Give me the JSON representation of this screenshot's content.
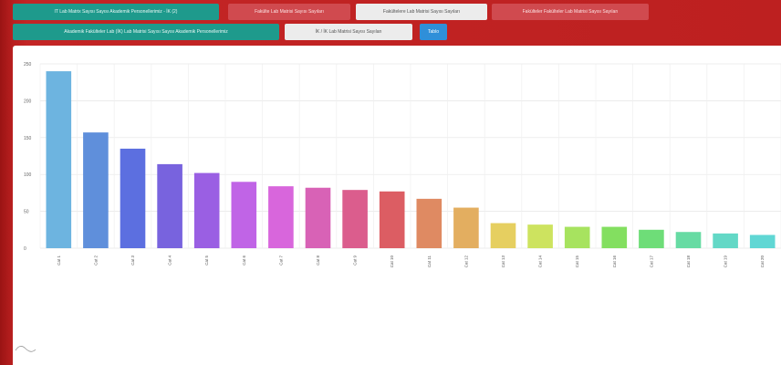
{
  "tabs": [
    {
      "label": "IT Lab Matrix Sayısı Sayısı Akademik Personellerimiz - İK (2)",
      "style": "teal",
      "active": true
    },
    {
      "label": "Fakülte Lab Matrisi Sayısı Sayıları",
      "style": "red",
      "active": false
    },
    {
      "label": "Fakültelere Lab Matrisi Sayısı Sayıları",
      "style": "light",
      "active": false
    },
    {
      "label": "Fakülteler Fakülteler Lab Matrisi Sayısı Sayıları",
      "style": "red",
      "active": false
    },
    {
      "label": "Akademik Fakülteler Lab (İK) Lab Matrisi Sayısı Sayısı Akademik Personellerimiz",
      "style": "teal",
      "active": false
    },
    {
      "label": "İK / İK Lab Matrisi Sayısı Sayıları",
      "style": "light",
      "active": false
    },
    {
      "label": "Tablo",
      "style": "blue",
      "active": false
    }
  ],
  "chart_data": {
    "type": "bar",
    "title": "",
    "xlabel": "",
    "ylabel": "",
    "ylim": [
      0,
      250
    ],
    "yticks": [
      0,
      50,
      100,
      150,
      200,
      250
    ],
    "grid": true,
    "categories": [
      "Cat 1",
      "Cat 2",
      "Cat 3",
      "Cat 4",
      "Cat 5",
      "Cat 6",
      "Cat 7",
      "Cat 8",
      "Cat 9",
      "Cat 10",
      "Cat 11",
      "Cat 12",
      "Cat 13",
      "Cat 14",
      "Cat 15",
      "Cat 16",
      "Cat 17",
      "Cat 18",
      "Cat 19",
      "Cat 20"
    ],
    "values": [
      240,
      157,
      135,
      114,
      102,
      90,
      84,
      82,
      79,
      77,
      67,
      55,
      34,
      32,
      29,
      29,
      25,
      22,
      20,
      18
    ],
    "colors": [
      "#6db4e0",
      "#5f8fdb",
      "#5c6fe0",
      "#7863de",
      "#9a5fe3",
      "#c064e6",
      "#d866dc",
      "#d862b6",
      "#db5d8d",
      "#dc5d63",
      "#df8a62",
      "#e3ae60",
      "#e6cf60",
      "#cde35f",
      "#a7e35f",
      "#83df60",
      "#6edd78",
      "#67dba3",
      "#63d8c6",
      "#60d7d4"
    ]
  }
}
